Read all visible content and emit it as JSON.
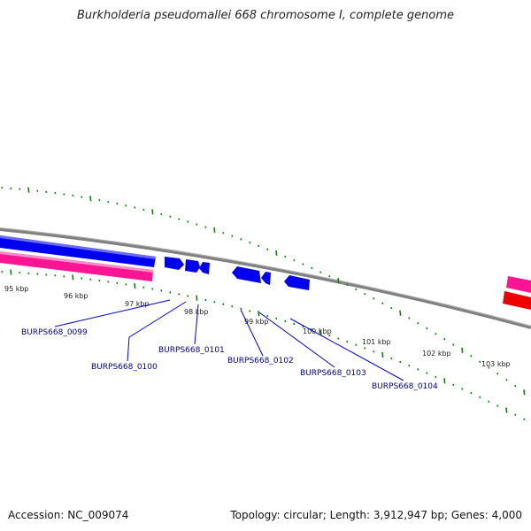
{
  "title": "Burkholderia pseudomallei 668 chromosome I, complete genome",
  "footer": {
    "accession": "Accession: NC_009074",
    "topology": "Topology: circular; Length: 3,912,947 bp; Genes: 4,000"
  },
  "colors": {
    "backbone": "#808080",
    "tick": "#1a7a1a",
    "gene_forward": "#0000ee",
    "gene_reverse": "#ff1493",
    "gene_red": "#ee0000",
    "label": "#00008b"
  },
  "kbp_labels": [
    "95 kbp",
    "96 kbp",
    "97 kbp",
    "98 kbp",
    "99 kbp",
    "100 kbp",
    "101 kbp",
    "102 kbp",
    "103 kbp"
  ],
  "gene_labels": [
    "BURPS668_0099",
    "BURPS668_0100",
    "BURPS668_0101",
    "BURPS668_0102",
    "BURPS668_0103",
    "BURPS668_0104"
  ]
}
